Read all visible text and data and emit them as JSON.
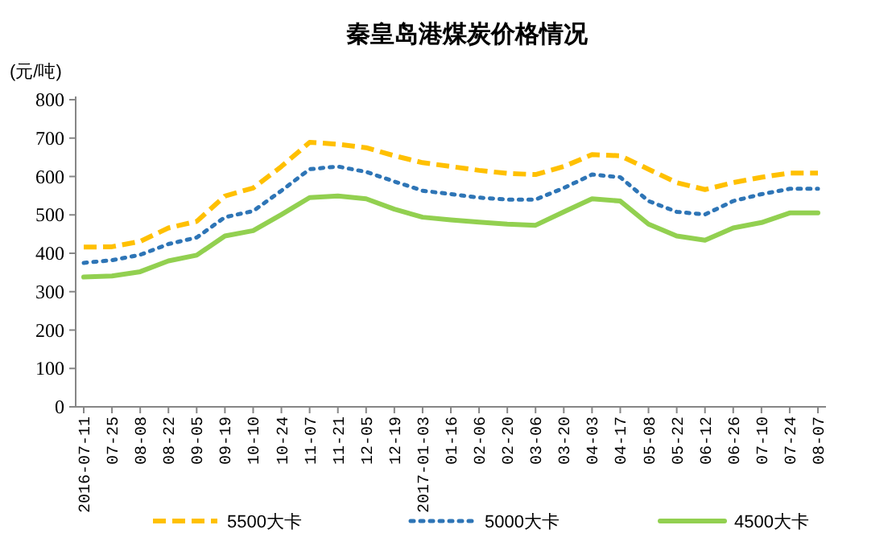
{
  "chart_data": {
    "type": "line",
    "title": "秦皇岛港煤炭价格情况",
    "ylabel": "(元/吨)",
    "categories": [
      "2016-07-11",
      "07-25",
      "08-08",
      "08-22",
      "09-05",
      "09-19",
      "10-10",
      "10-24",
      "11-07",
      "11-21",
      "12-05",
      "12-19",
      "2017-01-03",
      "01-16",
      "02-06",
      "02-20",
      "03-06",
      "03-20",
      "04-03",
      "04-17",
      "05-08",
      "05-22",
      "06-12",
      "06-26",
      "07-10",
      "07-24",
      "08-07"
    ],
    "series": [
      {
        "name": "5500大卡",
        "color": "#ffc000",
        "line_style": "dashed",
        "values": [
          416,
          417,
          431,
          466,
          483,
          549,
          570,
          626,
          689,
          684,
          675,
          654,
          636,
          626,
          616,
          608,
          605,
          626,
          657,
          654,
          619,
          584,
          566,
          584,
          598,
          609,
          609
        ]
      },
      {
        "name": "5000大卡",
        "color": "#2e75b6",
        "line_style": "dotted",
        "values": [
          375,
          382,
          396,
          424,
          441,
          494,
          510,
          563,
          619,
          626,
          612,
          587,
          563,
          554,
          545,
          540,
          540,
          570,
          605,
          598,
          536,
          508,
          501,
          536,
          554,
          568,
          568
        ]
      },
      {
        "name": "4500大卡",
        "color": "#92d050",
        "line_style": "solid",
        "values": [
          338,
          341,
          352,
          380,
          395,
          445,
          459,
          501,
          545,
          549,
          542,
          515,
          494,
          487,
          481,
          476,
          473,
          508,
          542,
          536,
          476,
          445,
          434,
          466,
          480,
          505,
          505
        ]
      }
    ],
    "ylim": [
      0,
      800
    ],
    "yticks": [
      0,
      100,
      200,
      300,
      400,
      500,
      600,
      700,
      800
    ],
    "grid": false,
    "legend": "bottom",
    "marker": "none"
  }
}
